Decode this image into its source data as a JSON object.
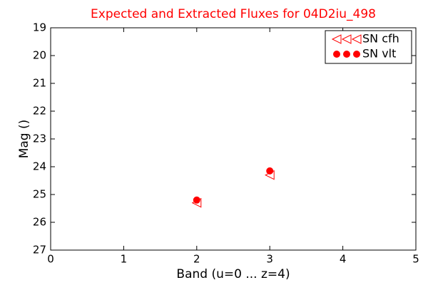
{
  "chart_data": {
    "type": "scatter",
    "title": "Expected and Extracted Fluxes for 04D2iu_498",
    "x_label": "Band (u=0 ... z=4)",
    "y_label": "Mag ()",
    "xlim": [
      0,
      5
    ],
    "xticks": [
      0,
      1,
      2,
      3,
      4,
      5
    ],
    "ylim": [
      27,
      19
    ],
    "yticks": [
      19,
      20,
      21,
      22,
      23,
      24,
      25,
      26,
      27
    ],
    "grid": false,
    "legend": "upper right",
    "series": [
      {
        "name": "SN cfh",
        "color": "#ff0000",
        "marker": "triangle-left",
        "x": [
          2,
          3
        ],
        "values": [
          25.3,
          24.3
        ]
      },
      {
        "name": "SN vlt",
        "color": "#ff0000",
        "marker": "circle",
        "x": [
          2,
          3
        ],
        "values": [
          25.2,
          24.15
        ]
      }
    ]
  }
}
